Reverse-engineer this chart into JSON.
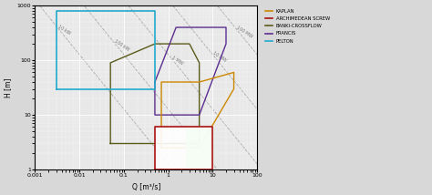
{
  "xlabel": "Q [m³/s]",
  "ylabel": "H [m]",
  "xlim": [
    0.001,
    100
  ],
  "ylim": [
    1,
    1000
  ],
  "kaplan": {
    "color": "#cc8800",
    "label": "KAPLAN",
    "x": [
      0.7,
      5,
      30,
      30,
      5,
      0.7,
      0.7
    ],
    "y": [
      2.5,
      2.5,
      30,
      60,
      40,
      40,
      2.5
    ]
  },
  "archimedean": {
    "color": "#aa1111",
    "label": "ARCHIMEDEAN SCREW",
    "x": [
      0.5,
      10,
      10,
      0.5,
      0.5
    ],
    "y": [
      1.0,
      1.0,
      6.0,
      6.0,
      1.0
    ]
  },
  "banki": {
    "color": "#5a5a1a",
    "label": "BANKI-CROSSFLOW",
    "x": [
      0.05,
      5,
      5,
      3,
      0.5,
      0.05,
      0.05
    ],
    "y": [
      3,
      3,
      90,
      200,
      200,
      90,
      3
    ]
  },
  "francis": {
    "color": "#5b2d8e",
    "label": "FRANCIS",
    "x": [
      0.5,
      1.5,
      2,
      20,
      20,
      5,
      0.5,
      0.5
    ],
    "y": [
      40,
      400,
      400,
      400,
      200,
      10,
      10,
      40
    ]
  },
  "pelton": {
    "color": "#22aacc",
    "label": "PELTON",
    "x": [
      0.003,
      0.003,
      0.05,
      0.5,
      0.5,
      0.05,
      0.003
    ],
    "y": [
      30,
      800,
      800,
      800,
      30,
      30,
      30
    ]
  },
  "green_fill": {
    "color": "#90ee90",
    "x": [
      2.5,
      10,
      10,
      2.5,
      2.5
    ],
    "y": [
      1.0,
      1.0,
      6.0,
      6.0,
      1.0
    ]
  },
  "power_lines": [
    {
      "kw": 10,
      "label": "10 kW"
    },
    {
      "kw": 100,
      "label": "100 kW"
    },
    {
      "kw": 1000,
      "label": "1 MW"
    },
    {
      "kw": 10000,
      "label": "10 MW"
    },
    {
      "kw": 100000,
      "label": "100 MW"
    }
  ]
}
